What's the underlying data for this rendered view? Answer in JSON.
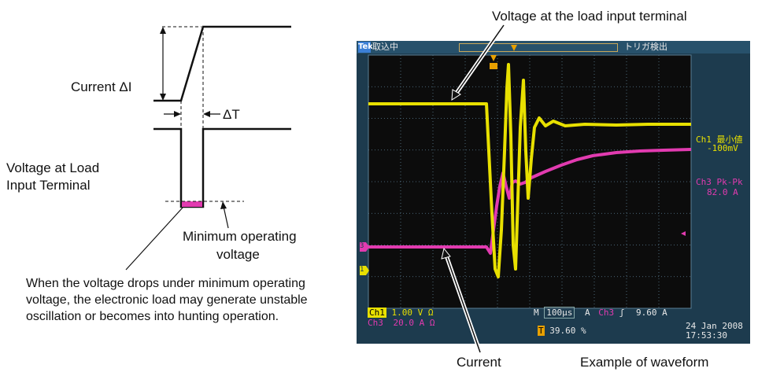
{
  "left_diagram": {
    "current_label": "Current  ΔI",
    "delta_t_label": "ΔT",
    "voltage_label_line1": "Voltage at Load",
    "voltage_label_line2": "Input Terminal",
    "min_voltage_line1": "Minimum operating",
    "min_voltage_line2": "voltage",
    "note": "When the voltage drops under minimum operating voltage, the electronic load may generate unstable oscillation or becomes into hunting operation."
  },
  "right_annotations": {
    "voltage_terminal": "Voltage at the load input terminal",
    "current": "Current",
    "example": "Example of waveform"
  },
  "scope": {
    "brand": "Tek",
    "acq_status": "取込中",
    "trigger_status": "トリガ検出",
    "trigger_marker": "T",
    "ch1_measure_label": "Ch1 最小値",
    "ch1_measure_value": "-100mV",
    "ch3_measure_label": "Ch3 Pk-Pk",
    "ch3_measure_value": "82.0 A",
    "ch1_marker": "1",
    "ch3_marker": "3",
    "ch1_name": "Ch1",
    "ch1_scale": "1.00 V Ω",
    "ch3_name": "Ch3",
    "ch3_scale": "20.0 A Ω",
    "timebase_prefix": "M",
    "timebase": "100µs",
    "trig_prefix": "A",
    "trig_source": "Ch3",
    "trig_slope": "ʃ",
    "trig_level": "9.60 A",
    "trig_position": "39.60 %",
    "date": "24 Jan  2008",
    "time": "17:53:30",
    "colors": {
      "ch1": "#e8e000",
      "ch3": "#e23bb0",
      "grid": "#5b7f95",
      "screen": "#0c0c0c"
    }
  }
}
